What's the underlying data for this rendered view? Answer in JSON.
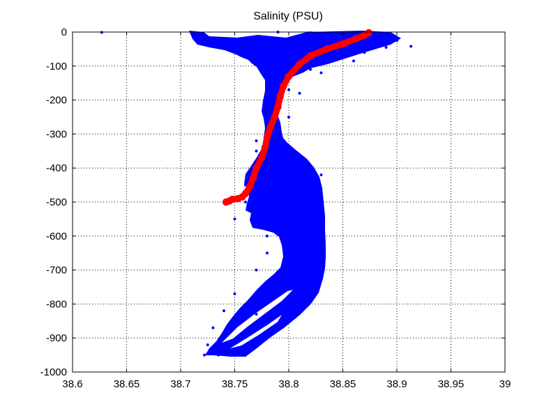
{
  "chart_data": {
    "type": "scatter",
    "title": "Salinity (PSU)",
    "xlabel": "",
    "ylabel": "",
    "xlim": [
      38.6,
      39
    ],
    "ylim": [
      -1000,
      0
    ],
    "x_ticks": [
      38.6,
      38.65,
      38.7,
      38.75,
      38.8,
      38.85,
      38.9,
      38.95,
      39
    ],
    "x_tick_labels": [
      "38.6",
      "38.65",
      "38.7",
      "38.75",
      "38.8",
      "38.85",
      "38.9",
      "38.95",
      "39"
    ],
    "y_ticks": [
      0,
      -100,
      -200,
      -300,
      -400,
      -500,
      -600,
      -700,
      -800,
      -900,
      -1000
    ],
    "y_tick_labels": [
      "0",
      "-100",
      "-200",
      "-300",
      "-400",
      "-500",
      "-600",
      "-700",
      "-800",
      "-900",
      "-1000"
    ],
    "grid": true,
    "grid_style": "dotted",
    "legend": "none",
    "series": [
      {
        "color": "#0000ff",
        "marker": "dot",
        "points": [
          [
            38.627,
            -1
          ],
          [
            38.79,
            0
          ],
          [
            38.82,
            -2
          ],
          [
            38.85,
            -5
          ],
          [
            38.88,
            -8
          ],
          [
            38.81,
            -10
          ],
          [
            38.84,
            -15
          ],
          [
            38.87,
            -20
          ],
          [
            38.9,
            -25
          ],
          [
            38.8,
            -25
          ],
          [
            38.83,
            -30
          ],
          [
            38.86,
            -40
          ],
          [
            38.89,
            -45
          ],
          [
            38.82,
            -50
          ],
          [
            38.85,
            -55
          ],
          [
            38.87,
            -60
          ],
          [
            38.913,
            -42
          ],
          [
            38.8,
            -60
          ],
          [
            38.82,
            -70
          ],
          [
            38.84,
            -80
          ],
          [
            38.86,
            -85
          ],
          [
            38.8,
            -100
          ],
          [
            38.82,
            -110
          ],
          [
            38.83,
            -120
          ],
          [
            38.79,
            -150
          ],
          [
            38.8,
            -170
          ],
          [
            38.81,
            -180
          ],
          [
            38.78,
            -200
          ],
          [
            38.79,
            -230
          ],
          [
            38.8,
            -250
          ],
          [
            38.78,
            -280
          ],
          [
            38.79,
            -300
          ],
          [
            38.77,
            -320
          ],
          [
            38.77,
            -350
          ],
          [
            38.79,
            -370
          ],
          [
            38.81,
            -380
          ],
          [
            38.77,
            -400
          ],
          [
            38.8,
            -410
          ],
          [
            38.83,
            -420
          ],
          [
            38.76,
            -450
          ],
          [
            38.79,
            -460
          ],
          [
            38.83,
            -470
          ],
          [
            38.76,
            -500
          ],
          [
            38.8,
            -510
          ],
          [
            38.83,
            -520
          ],
          [
            38.75,
            -550
          ],
          [
            38.77,
            -560
          ],
          [
            38.81,
            -570
          ],
          [
            38.83,
            -580
          ],
          [
            38.78,
            -600
          ],
          [
            38.81,
            -620
          ],
          [
            38.83,
            -640
          ],
          [
            38.78,
            -650
          ],
          [
            38.8,
            -680
          ],
          [
            38.83,
            -690
          ],
          [
            38.77,
            -700
          ],
          [
            38.79,
            -730
          ],
          [
            38.82,
            -740
          ],
          [
            38.75,
            -770
          ],
          [
            38.78,
            -780
          ],
          [
            38.81,
            -790
          ],
          [
            38.74,
            -820
          ],
          [
            38.77,
            -830
          ],
          [
            38.8,
            -840
          ],
          [
            38.73,
            -870
          ],
          [
            38.76,
            -880
          ],
          [
            38.78,
            -890
          ],
          [
            38.725,
            -920
          ],
          [
            38.74,
            -935
          ],
          [
            38.76,
            -940
          ],
          [
            38.722,
            -950
          ],
          [
            38.735,
            -950
          ],
          [
            38.745,
            -950
          ],
          [
            38.755,
            -948
          ]
        ]
      },
      {
        "color": "#ff0000",
        "marker": "circle",
        "points": [
          [
            38.874,
            -2
          ],
          [
            38.87,
            -10
          ],
          [
            38.862,
            -20
          ],
          [
            38.85,
            -35
          ],
          [
            38.835,
            -50
          ],
          [
            38.82,
            -70
          ],
          [
            38.81,
            -95
          ],
          [
            38.8,
            -130
          ],
          [
            38.795,
            -160
          ],
          [
            38.792,
            -190
          ],
          [
            38.79,
            -220
          ],
          [
            38.787,
            -250
          ],
          [
            38.783,
            -280
          ],
          [
            38.78,
            -310
          ],
          [
            38.778,
            -340
          ],
          [
            38.775,
            -370
          ],
          [
            38.77,
            -400
          ],
          [
            38.767,
            -430
          ],
          [
            38.764,
            -455
          ],
          [
            38.76,
            -475
          ],
          [
            38.757,
            -485
          ],
          [
            38.753,
            -490
          ],
          [
            38.748,
            -492
          ],
          [
            38.745,
            -497
          ],
          [
            38.742,
            -500
          ]
        ]
      }
    ]
  }
}
